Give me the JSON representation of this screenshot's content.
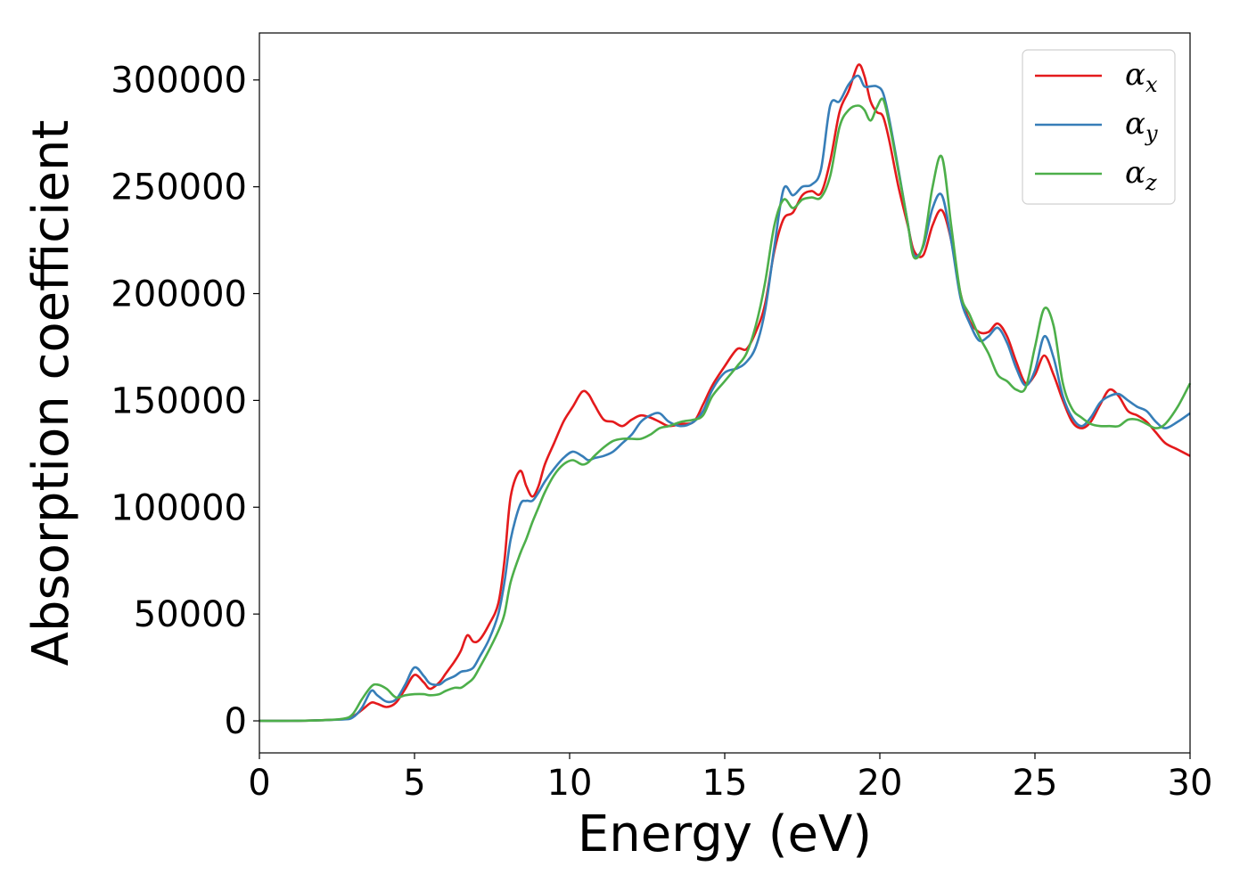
{
  "chart_data": {
    "type": "line",
    "title": "",
    "xlabel": "Energy (eV)",
    "ylabel": "Absorption coefficient",
    "xlim": [
      0,
      30
    ],
    "ylim": [
      -15000,
      322000
    ],
    "xticks": [
      0,
      5,
      10,
      15,
      20,
      25,
      30
    ],
    "yticks": [
      0,
      50000,
      100000,
      150000,
      200000,
      250000,
      300000
    ],
    "grid": false,
    "legend": "top-right",
    "series": [
      {
        "symbol": "α",
        "sub": "x",
        "color": "#e41a1c",
        "x": [
          0,
          1,
          2,
          2.7,
          3.0,
          3.3,
          3.6,
          3.8,
          4.1,
          4.4,
          4.7,
          5.0,
          5.3,
          5.5,
          5.8,
          6.0,
          6.3,
          6.5,
          6.7,
          6.9,
          7.1,
          7.4,
          7.7,
          7.9,
          8.1,
          8.4,
          8.6,
          8.8,
          9.0,
          9.2,
          9.5,
          9.8,
          10.1,
          10.4,
          10.6,
          10.8,
          11.1,
          11.4,
          11.7,
          12.0,
          12.3,
          12.6,
          12.9,
          13.2,
          13.6,
          14.0,
          14.3,
          14.6,
          15.0,
          15.4,
          15.7,
          16.0,
          16.3,
          16.6,
          16.9,
          17.2,
          17.5,
          17.8,
          18.1,
          18.4,
          18.7,
          19.0,
          19.3,
          19.5,
          19.7,
          19.9,
          20.1,
          20.3,
          20.6,
          20.9,
          21.1,
          21.4,
          21.7,
          22.0,
          22.3,
          22.6,
          22.9,
          23.2,
          23.5,
          23.8,
          24.1,
          24.4,
          24.7,
          25.0,
          25.3,
          25.6,
          25.9,
          26.2,
          26.5,
          26.8,
          27.1,
          27.4,
          27.7,
          28.0,
          28.3,
          28.6,
          28.9,
          29.2,
          29.6,
          30.0
        ],
        "y": [
          0,
          0,
          300,
          800,
          2000,
          5000,
          8500,
          8000,
          6500,
          8500,
          15000,
          21500,
          18000,
          15000,
          18000,
          22000,
          28000,
          33000,
          40000,
          37000,
          38000,
          45000,
          55000,
          75000,
          105000,
          117000,
          110000,
          105000,
          110000,
          120000,
          130000,
          140000,
          147000,
          154000,
          153000,
          148000,
          141000,
          140000,
          138000,
          141000,
          143000,
          142000,
          140000,
          138000,
          139000,
          140000,
          148000,
          157000,
          166000,
          174000,
          174000,
          182000,
          195000,
          220000,
          235000,
          238000,
          246000,
          248000,
          247000,
          262000,
          285000,
          295000,
          307000,
          302000,
          290000,
          285000,
          283000,
          272000,
          250000,
          232000,
          220000,
          218000,
          232000,
          239000,
          225000,
          200000,
          187000,
          182000,
          182000,
          186000,
          180000,
          168000,
          158000,
          162000,
          171000,
          162000,
          150000,
          140000,
          137000,
          140000,
          148000,
          155000,
          152000,
          145000,
          143000,
          140000,
          135000,
          130000,
          127000,
          124000
        ]
      },
      {
        "symbol": "α",
        "sub": "y",
        "color": "#377eb8",
        "x": [
          0,
          1,
          2,
          2.7,
          3.0,
          3.3,
          3.6,
          3.8,
          4.1,
          4.4,
          4.7,
          5.0,
          5.3,
          5.5,
          5.8,
          6.0,
          6.3,
          6.5,
          6.7,
          6.9,
          7.1,
          7.4,
          7.7,
          7.9,
          8.1,
          8.4,
          8.6,
          8.8,
          9.0,
          9.2,
          9.5,
          9.8,
          10.1,
          10.4,
          10.6,
          10.8,
          11.1,
          11.4,
          11.7,
          12.0,
          12.3,
          12.6,
          12.9,
          13.2,
          13.6,
          14.0,
          14.3,
          14.6,
          15.0,
          15.4,
          15.7,
          16.0,
          16.3,
          16.6,
          16.9,
          17.2,
          17.5,
          17.8,
          18.1,
          18.4,
          18.7,
          19.0,
          19.3,
          19.5,
          19.7,
          19.9,
          20.1,
          20.3,
          20.6,
          20.9,
          21.1,
          21.4,
          21.7,
          22.0,
          22.3,
          22.6,
          22.9,
          23.2,
          23.5,
          23.8,
          24.1,
          24.4,
          24.7,
          25.0,
          25.3,
          25.6,
          25.9,
          26.2,
          26.5,
          26.8,
          27.1,
          27.4,
          27.7,
          28.0,
          28.3,
          28.6,
          28.9,
          29.2,
          29.6,
          30.0
        ],
        "y": [
          0,
          0,
          300,
          700,
          1500,
          6000,
          14000,
          12000,
          9000,
          10000,
          17000,
          25000,
          21000,
          17500,
          17000,
          19000,
          21000,
          23000,
          23500,
          25000,
          30000,
          38000,
          50000,
          65000,
          85000,
          101000,
          103000,
          103000,
          107000,
          112000,
          118000,
          123000,
          126000,
          124000,
          122000,
          123000,
          124000,
          126000,
          130000,
          134000,
          140000,
          143000,
          144000,
          140000,
          138000,
          140000,
          145000,
          155000,
          163000,
          165000,
          168000,
          175000,
          192000,
          222000,
          249000,
          246000,
          250000,
          251000,
          258000,
          288000,
          290000,
          298000,
          302000,
          297000,
          297000,
          297000,
          294000,
          282000,
          258000,
          233000,
          218000,
          222000,
          240000,
          246000,
          225000,
          198000,
          186000,
          178000,
          180000,
          184000,
          177000,
          165000,
          157000,
          164000,
          180000,
          170000,
          152000,
          142000,
          138000,
          142000,
          149000,
          152000,
          153000,
          150000,
          147000,
          145000,
          140000,
          137000,
          140000,
          144000
        ]
      },
      {
        "symbol": "α",
        "sub": "z",
        "color": "#4daf4a",
        "x": [
          0,
          1,
          2,
          2.7,
          3.0,
          3.3,
          3.6,
          3.8,
          4.1,
          4.4,
          4.7,
          5.0,
          5.3,
          5.5,
          5.8,
          6.0,
          6.3,
          6.5,
          6.7,
          6.9,
          7.1,
          7.4,
          7.7,
          7.9,
          8.1,
          8.4,
          8.6,
          8.8,
          9.0,
          9.2,
          9.5,
          9.8,
          10.1,
          10.4,
          10.6,
          10.8,
          11.1,
          11.4,
          11.7,
          12.0,
          12.3,
          12.6,
          12.9,
          13.2,
          13.6,
          14.0,
          14.3,
          14.6,
          15.0,
          15.4,
          15.7,
          16.0,
          16.3,
          16.6,
          16.9,
          17.2,
          17.5,
          17.8,
          18.1,
          18.4,
          18.7,
          19.0,
          19.3,
          19.5,
          19.7,
          19.9,
          20.1,
          20.3,
          20.6,
          20.9,
          21.1,
          21.4,
          21.7,
          22.0,
          22.3,
          22.6,
          22.9,
          23.2,
          23.5,
          23.8,
          24.1,
          24.4,
          24.7,
          25.0,
          25.3,
          25.6,
          25.9,
          26.2,
          26.5,
          26.8,
          27.1,
          27.4,
          27.7,
          28.0,
          28.3,
          28.6,
          28.9,
          29.2,
          29.6,
          30.0
        ],
        "y": [
          0,
          0,
          300,
          1000,
          3000,
          10000,
          16000,
          17000,
          15000,
          11000,
          12000,
          12500,
          12500,
          12000,
          12500,
          14000,
          15500,
          15500,
          17500,
          20000,
          25000,
          33000,
          42000,
          50000,
          65000,
          78000,
          85000,
          93000,
          100000,
          107000,
          115000,
          120000,
          122000,
          120000,
          121000,
          124000,
          128000,
          131000,
          132000,
          132000,
          132000,
          134000,
          137000,
          138000,
          140000,
          141000,
          143000,
          152000,
          159000,
          166000,
          172000,
          185000,
          205000,
          232000,
          244000,
          240000,
          244000,
          245000,
          245000,
          255000,
          278000,
          286000,
          288000,
          286000,
          281000,
          287000,
          291000,
          280000,
          257000,
          233000,
          217000,
          223000,
          250000,
          264000,
          232000,
          200000,
          190000,
          180000,
          172000,
          162000,
          159000,
          155000,
          156000,
          175000,
          193000,
          185000,
          158000,
          146000,
          142000,
          139000,
          138000,
          138000,
          138000,
          141000,
          141000,
          139000,
          137000,
          139000,
          147000,
          158000
        ]
      }
    ]
  }
}
